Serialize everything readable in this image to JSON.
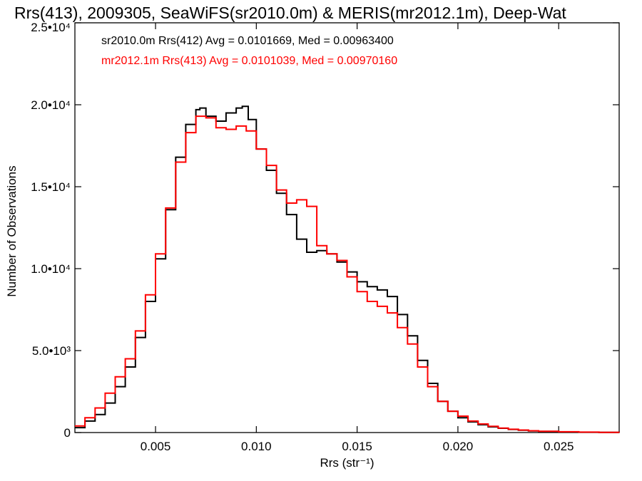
{
  "chart_data": {
    "type": "line",
    "title": "Rrs(413), 2009305, SeaWiFS(sr2010.0m) & MERIS(mr2012.1m), Deep-Wat",
    "xlabel": "Rrs (str⁻¹)",
    "ylabel": "Number of Observations",
    "xlim": [
      0.001,
      0.028
    ],
    "ylim": [
      0,
      25000
    ],
    "x_ticks": [
      {
        "value": 0.005,
        "label": "0.005"
      },
      {
        "value": 0.01,
        "label": "0.010"
      },
      {
        "value": 0.015,
        "label": "0.015"
      },
      {
        "value": 0.02,
        "label": "0.020"
      },
      {
        "value": 0.025,
        "label": "0.025"
      }
    ],
    "y_ticks": [
      {
        "value": 0,
        "label": "0"
      },
      {
        "value": 5000,
        "label": "5.0•10³"
      },
      {
        "value": 10000,
        "label": "1.0•10⁴"
      },
      {
        "value": 15000,
        "label": "1.5•10⁴"
      },
      {
        "value": 20000,
        "label": "2.0•10⁴"
      },
      {
        "value": 25000,
        "label": "2.5•10⁴"
      }
    ],
    "grid": false,
    "legend_position": "top-left",
    "series": [
      {
        "name": "sr2010.0m Rrs(412) Avg = 0.0101669, Med = 0.00963400",
        "color": "#000000",
        "x": [
          0.001,
          0.0015,
          0.002,
          0.0025,
          0.003,
          0.0035,
          0.004,
          0.0045,
          0.005,
          0.0055,
          0.006,
          0.0065,
          0.007,
          0.0072,
          0.0075,
          0.008,
          0.0085,
          0.009,
          0.0093,
          0.0096,
          0.01,
          0.0105,
          0.011,
          0.0115,
          0.012,
          0.0125,
          0.013,
          0.0135,
          0.014,
          0.0145,
          0.015,
          0.0155,
          0.016,
          0.0165,
          0.017,
          0.0175,
          0.018,
          0.0185,
          0.019,
          0.0195,
          0.02,
          0.0205,
          0.021,
          0.0215,
          0.022,
          0.0225,
          0.023,
          0.0235,
          0.024,
          0.025,
          0.026,
          0.027,
          0.028
        ],
        "y": [
          300,
          700,
          1100,
          1800,
          2800,
          4000,
          5800,
          8000,
          10600,
          13600,
          16800,
          18800,
          19700,
          19800,
          19300,
          19000,
          19500,
          19800,
          19900,
          19100,
          17300,
          16000,
          14600,
          13300,
          11800,
          11000,
          11100,
          10900,
          10400,
          9800,
          9200,
          8900,
          8700,
          8300,
          7200,
          5900,
          4400,
          3000,
          1900,
          1300,
          900,
          650,
          480,
          350,
          260,
          190,
          140,
          100,
          70,
          40,
          20,
          10,
          5
        ]
      },
      {
        "name": "mr2012.1m Rrs(413) Avg = 0.0101039, Med = 0.00970160",
        "color": "#ff0000",
        "x": [
          0.001,
          0.0015,
          0.002,
          0.0025,
          0.003,
          0.0035,
          0.004,
          0.0045,
          0.005,
          0.0055,
          0.006,
          0.0065,
          0.007,
          0.0075,
          0.008,
          0.0085,
          0.009,
          0.0095,
          0.01,
          0.0105,
          0.011,
          0.0115,
          0.012,
          0.0125,
          0.013,
          0.0135,
          0.014,
          0.0145,
          0.015,
          0.0155,
          0.016,
          0.0165,
          0.017,
          0.0175,
          0.018,
          0.0185,
          0.019,
          0.0195,
          0.02,
          0.0205,
          0.021,
          0.0215,
          0.022,
          0.0225,
          0.023,
          0.0235,
          0.024,
          0.025,
          0.026,
          0.027,
          0.028
        ],
        "y": [
          400,
          900,
          1500,
          2400,
          3400,
          4500,
          6200,
          8400,
          10900,
          13700,
          16500,
          18300,
          19300,
          19200,
          18600,
          18500,
          18700,
          18400,
          17300,
          16300,
          14800,
          14000,
          14200,
          13800,
          11400,
          10900,
          10500,
          9500,
          8600,
          8000,
          7700,
          7300,
          6400,
          5400,
          4000,
          2800,
          1900,
          1300,
          1000,
          700,
          520,
          380,
          270,
          200,
          150,
          110,
          80,
          50,
          25,
          12,
          6
        ]
      }
    ]
  }
}
